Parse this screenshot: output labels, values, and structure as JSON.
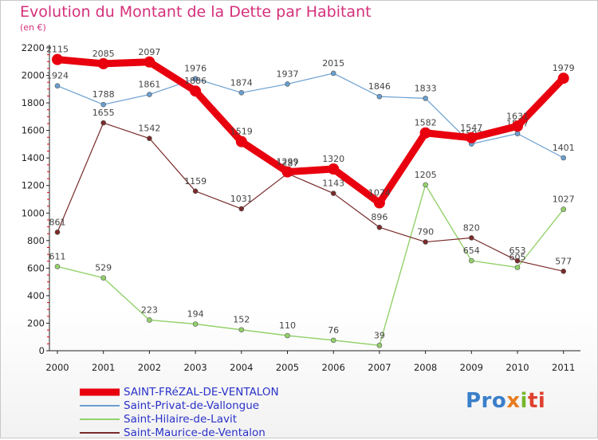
{
  "header": {
    "title": "Evolution du Montant de la Dette par Habitant",
    "subtitle": "(en €)"
  },
  "logo": {
    "p1": "Pro",
    "p2": "x",
    "p3": "i",
    "p4": "ti"
  },
  "colors": {
    "main": "#e8000e",
    "privat": "#6a9fd0",
    "hilaire": "#93d16a",
    "maurice": "#7a2a2a",
    "axis": "#222222",
    "tick_mark": "#e8000e",
    "title": "#d4307a",
    "legend_text": "#2a32c8"
  },
  "chart_data": {
    "type": "line",
    "title": "Evolution du Montant de la Dette par Habitant",
    "subtitle": "(en €)",
    "xlabel": "",
    "ylabel": "",
    "x": [
      "2000",
      "2001",
      "2002",
      "2003",
      "2004",
      "2005",
      "2006",
      "2007",
      "2008",
      "2009",
      "2010",
      "2011"
    ],
    "ylim": [
      0,
      2200
    ],
    "yticks": [
      0,
      200,
      400,
      600,
      800,
      1000,
      1200,
      1400,
      1600,
      1800,
      2000,
      2200
    ],
    "grid": false,
    "legend_position": "bottom-left",
    "series": [
      {
        "name": "Saint-Privat-de-Vallongue",
        "color": "#6a9fd0",
        "values": [
          1924,
          1788,
          1861,
          1976,
          1874,
          1937,
          2015,
          1846,
          1833,
          1502,
          1577,
          1401
        ]
      },
      {
        "name": "Saint-Hilaire-de-Lavit",
        "color": "#93d16a",
        "values": [
          611,
          529,
          223,
          194,
          152,
          110,
          76,
          39,
          1205,
          654,
          605,
          1027
        ]
      },
      {
        "name": "Saint-Maurice-de-Ventalon",
        "color": "#7a2a2a",
        "values": [
          861,
          1655,
          1542,
          1159,
          1031,
          1287,
          1143,
          896,
          790,
          820,
          653,
          577
        ]
      },
      {
        "name": "SAINT-FRéZAL-DE-VENTALON",
        "color": "#e8000e",
        "values": [
          2115,
          2085,
          2097,
          1886,
          1519,
          1299,
          1320,
          1074,
          1582,
          1547,
          1631,
          1979
        ]
      }
    ]
  }
}
